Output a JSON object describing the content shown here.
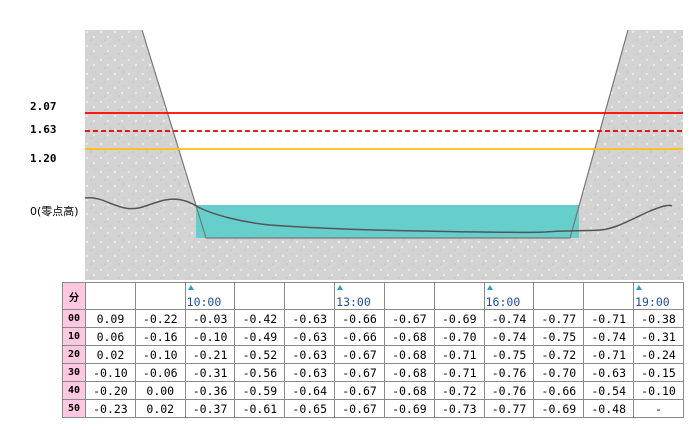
{
  "chart_data": {
    "type": "area",
    "title": "",
    "y_ticks": [
      {
        "value": 2.07,
        "label": "2.07",
        "style": "solid",
        "color": "#ff0000"
      },
      {
        "value": 1.63,
        "label": "1.63",
        "style": "dashed",
        "color": "#e00000"
      },
      {
        "value": 1.2,
        "label": "1.20",
        "style": "solid",
        "color": "#ffc000"
      }
    ],
    "zero_label": "0(零点高)",
    "water_level_m": -0.23,
    "colors": {
      "water": "#66cfcc",
      "ground": "#d3d3d3",
      "channel": "#ffffff",
      "profile": "#555555"
    }
  },
  "table": {
    "minute_header": "分",
    "time_marks": [
      {
        "col": 2,
        "label": "10:00"
      },
      {
        "col": 5,
        "label": "13:00"
      },
      {
        "col": 8,
        "label": "16:00"
      },
      {
        "col": 11,
        "label": "19:00"
      }
    ],
    "columns": 12,
    "rows": [
      {
        "minute": "00",
        "values": [
          "0.09",
          "-0.22",
          "-0.03",
          "-0.42",
          "-0.63",
          "-0.66",
          "-0.67",
          "-0.69",
          "-0.74",
          "-0.77",
          "-0.71",
          "-0.38"
        ]
      },
      {
        "minute": "10",
        "values": [
          "0.06",
          "-0.16",
          "-0.10",
          "-0.49",
          "-0.63",
          "-0.66",
          "-0.68",
          "-0.70",
          "-0.74",
          "-0.75",
          "-0.74",
          "-0.31"
        ]
      },
      {
        "minute": "20",
        "values": [
          "0.02",
          "-0.10",
          "-0.21",
          "-0.52",
          "-0.63",
          "-0.67",
          "-0.68",
          "-0.71",
          "-0.75",
          "-0.72",
          "-0.71",
          "-0.24"
        ]
      },
      {
        "minute": "30",
        "values": [
          "-0.10",
          "-0.06",
          "-0.31",
          "-0.56",
          "-0.63",
          "-0.67",
          "-0.68",
          "-0.71",
          "-0.76",
          "-0.70",
          "-0.63",
          "-0.15"
        ]
      },
      {
        "minute": "40",
        "values": [
          "-0.20",
          "0.00",
          "-0.36",
          "-0.59",
          "-0.64",
          "-0.67",
          "-0.68",
          "-0.72",
          "-0.76",
          "-0.66",
          "-0.54",
          "-0.10"
        ]
      },
      {
        "minute": "50",
        "values": [
          "-0.23",
          "0.02",
          "-0.37",
          "-0.61",
          "-0.65",
          "-0.67",
          "-0.69",
          "-0.73",
          "-0.77",
          "-0.69",
          "-0.48",
          "-"
        ]
      }
    ]
  }
}
